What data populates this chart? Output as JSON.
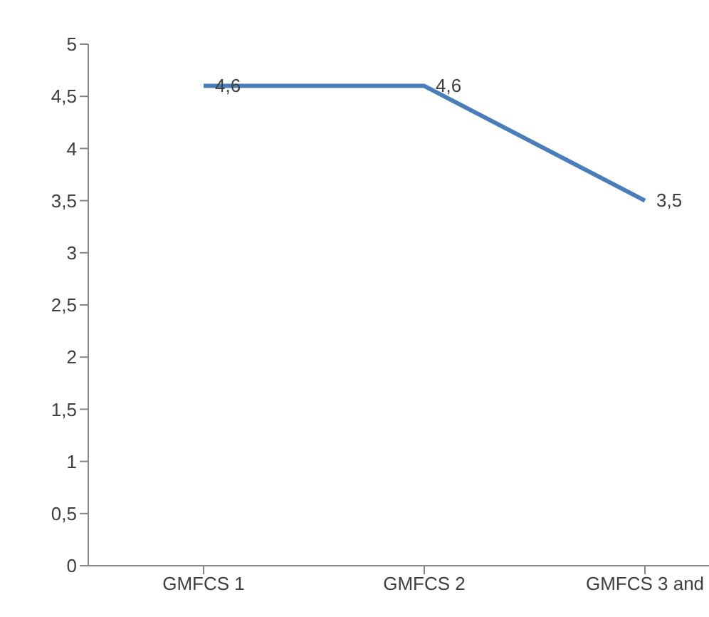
{
  "chart_data": {
    "type": "line",
    "categories": [
      "GMFCS 1",
      "GMFCS 2",
      "GMFCS 3 and"
    ],
    "series": [
      {
        "color": "#4a7ebb",
        "values": [
          4.6,
          4.6,
          3.5
        ],
        "value_labels": [
          "4,6",
          "4,6",
          "3,5"
        ]
      }
    ],
    "ylim": [
      0,
      5
    ],
    "yticks": [
      0,
      {
        "value": 0.5,
        "label": "0,5"
      },
      1,
      {
        "value": 1.5,
        "label": "1,5"
      },
      2,
      {
        "value": 2.5,
        "label": "2,5"
      },
      3,
      {
        "value": 3.5,
        "label": "3,5"
      },
      4,
      {
        "value": 4.5,
        "label": "4,5"
      },
      5
    ],
    "grid": false,
    "legend": false,
    "marker": "none",
    "line_style": "solid"
  }
}
